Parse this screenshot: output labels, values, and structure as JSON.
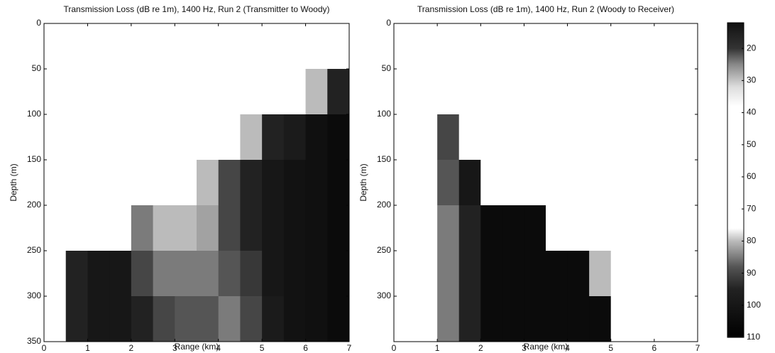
{
  "chart_data": [
    {
      "type": "heatmap",
      "title": "Transmission Loss (dB re 1m), 1400 Hz, Run 2 (Transmitter to Woody)",
      "x_label": "Range (km)",
      "y_label": "Depth (m)",
      "xbins": [
        0,
        0.5,
        1,
        1.5,
        2,
        2.5,
        3,
        3.5,
        4,
        4.5,
        5,
        5.5,
        6,
        6.5,
        7
      ],
      "ybins": [
        0,
        50,
        100,
        150,
        200,
        250,
        300,
        350
      ],
      "z": [
        [
          55,
          55,
          55,
          55,
          55,
          55,
          55,
          55,
          55,
          55,
          55,
          55,
          55,
          55
        ],
        [
          55,
          55,
          55,
          55,
          55,
          55,
          55,
          55,
          55,
          55,
          55,
          60,
          80,
          95
        ],
        [
          55,
          55,
          55,
          55,
          55,
          55,
          55,
          55,
          60,
          80,
          95,
          98,
          103,
          105
        ],
        [
          55,
          55,
          55,
          55,
          55,
          55,
          65,
          80,
          90,
          95,
          100,
          102,
          103,
          105
        ],
        [
          55,
          55,
          55,
          70,
          85,
          80,
          80,
          82,
          90,
          95,
          100,
          102,
          103,
          105
        ],
        [
          55,
          95,
          100,
          100,
          90,
          85,
          85,
          85,
          88,
          92,
          100,
          102,
          103,
          105
        ],
        [
          55,
          95,
          100,
          100,
          95,
          90,
          88,
          88,
          85,
          90,
          98,
          102,
          103,
          105
        ]
      ],
      "xlim": [
        0,
        7
      ],
      "xticks": [
        0,
        1,
        2,
        3,
        4,
        5,
        6,
        7
      ],
      "ylim": [
        0,
        350
      ],
      "yticks": [
        0,
        50,
        100,
        150,
        200,
        250,
        300,
        350
      ],
      "y_reversed": true
    },
    {
      "type": "heatmap",
      "title": "Transmission Loss (dB re 1m), 1400 Hz, Run 2 (Woody to Receiver)",
      "x_label": "Range (km)",
      "y_label": "Depth (m)",
      "xbins": [
        0,
        0.5,
        1,
        1.5,
        2,
        2.5,
        3,
        3.5,
        4,
        4.5,
        5,
        5.5,
        6,
        6.5,
        7
      ],
      "ybins": [
        0,
        50,
        100,
        150,
        200,
        250,
        300,
        350
      ],
      "z": [
        [
          55,
          55,
          55,
          55,
          55,
          55,
          55,
          55,
          55,
          55,
          55,
          55,
          55,
          55
        ],
        [
          55,
          55,
          55,
          55,
          55,
          55,
          55,
          55,
          55,
          55,
          55,
          55,
          55,
          55
        ],
        [
          55,
          70,
          90,
          55,
          55,
          55,
          55,
          55,
          55,
          55,
          55,
          55,
          55,
          55
        ],
        [
          55,
          75,
          88,
          100,
          55,
          55,
          55,
          55,
          55,
          55,
          55,
          55,
          55,
          55
        ],
        [
          55,
          75,
          85,
          95,
          105,
          105,
          105,
          60,
          60,
          60,
          60,
          60,
          60,
          60
        ],
        [
          55,
          70,
          85,
          95,
          105,
          105,
          105,
          105,
          105,
          80,
          65,
          65,
          65,
          65
        ],
        [
          60,
          70,
          85,
          95,
          105,
          105,
          105,
          105,
          105,
          105,
          65,
          60,
          70,
          65
        ]
      ],
      "xlim": [
        0,
        7
      ],
      "xticks": [
        0,
        1,
        2,
        3,
        4,
        5,
        6,
        7
      ],
      "ylim": [
        0,
        350
      ],
      "yticks": [
        0,
        50,
        100,
        150,
        200,
        250,
        300
      ],
      "y_reversed": true,
      "clim": [
        12,
        110
      ],
      "cticks": [
        20,
        30,
        40,
        50,
        60,
        70,
        80,
        90,
        100,
        110
      ],
      "colormap": [
        [
          12,
          "#111111"
        ],
        [
          20,
          "#333333"
        ],
        [
          25,
          "#888888"
        ],
        [
          32,
          "#dddddd"
        ],
        [
          38,
          "#ffffff"
        ],
        [
          76,
          "#ffffff"
        ],
        [
          80,
          "#bbbbbb"
        ],
        [
          88,
          "#555555"
        ],
        [
          95,
          "#222222"
        ],
        [
          110,
          "#000000"
        ]
      ]
    }
  ]
}
